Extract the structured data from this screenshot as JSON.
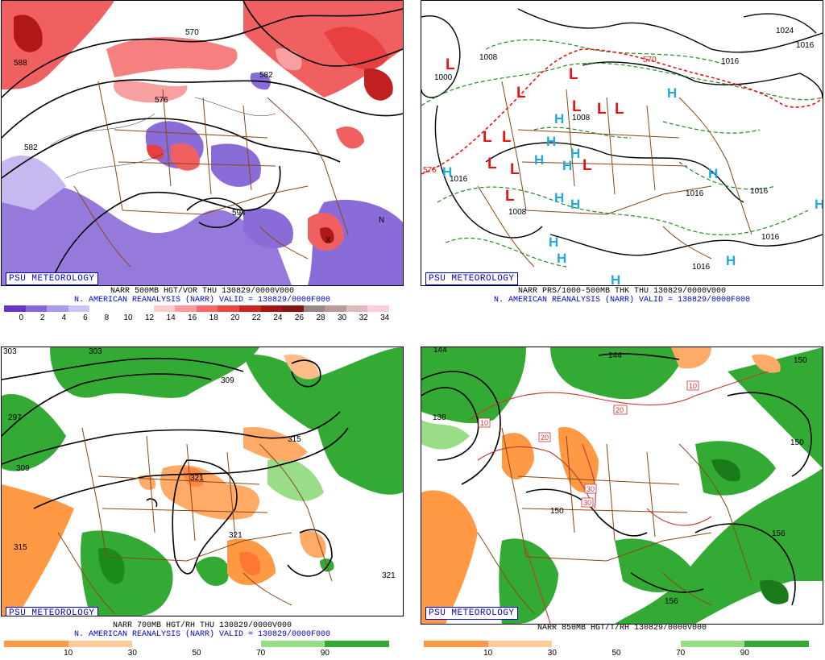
{
  "panels": [
    {
      "id": "p1",
      "watermark": "PSU METEOROLOGY",
      "caption_line1": "NARR 500MB HGT/VOR THU 130829/0000V000",
      "caption_line2": "N. AMERICAN REANALYSIS (NARR) VALID = 130829/0000F000",
      "map_labels": [
        "588",
        "582",
        "594",
        "570",
        "582",
        "576",
        "N",
        "X"
      ],
      "colorbar": {
        "colors": [
          "#6633cc",
          "#8866dd",
          "#aa99ee",
          "#ccc4f4",
          "#ffffff",
          "#ffffff",
          "#ffffff",
          "#ffcccc",
          "#ff9999",
          "#ff6666",
          "#ee4444",
          "#cc2222",
          "#aa1111",
          "#881111",
          "#998888",
          "#bb9999",
          "#ddbbbb",
          "#ffccdd"
        ],
        "ticks": [
          "0",
          "2",
          "4",
          "6",
          "8",
          "10",
          "12",
          "14",
          "16",
          "18",
          "20",
          "22",
          "24",
          "26",
          "28",
          "30",
          "32",
          "34"
        ]
      }
    },
    {
      "id": "p2",
      "watermark": "PSU METEOROLOGY",
      "caption_line1": "NARR PRS/1000-500MB THK THU 130829/0000V000",
      "caption_line2": "N. AMERICAN REANALYSIS (NARR) VALID = 130829/0000F000",
      "map_labels": [
        "1008",
        "1000",
        "1008",
        "1008",
        "1016",
        "1016",
        "1016",
        "1016",
        "1016",
        "1016",
        "1024",
        "1016",
        "570",
        "576",
        "L",
        "H"
      ]
    },
    {
      "id": "p3",
      "watermark": "PSU METEOROLOGY",
      "caption_line1": "NARR 700MB HGT/RH THU 130829/0000V000",
      "caption_line2": "N. AMERICAN REANALYSIS (NARR) VALID = 130829/0000F000",
      "map_labels": [
        "303",
        "303",
        "309",
        "297",
        "309",
        "315",
        "321",
        "321",
        "315",
        "321"
      ],
      "colorbar": {
        "colors": [
          "#ff9944",
          "#ffcc99",
          "#ffffff",
          "#ffffff",
          "#99dd88",
          "#33aa33"
        ],
        "ticks": [
          "10",
          "30",
          "50",
          "70",
          "90"
        ]
      }
    },
    {
      "id": "p4",
      "watermark": "PSU METEOROLOGY",
      "caption_line1": "NARR 850MB HGT/T/RH 130829/0000V000",
      "map_labels": [
        "144",
        "144",
        "150",
        "138",
        "10",
        "20",
        "20",
        "30",
        "30",
        "10",
        "150",
        "150",
        "156",
        "156"
      ],
      "colorbar": {
        "colors": [
          "#ff9944",
          "#ffcc99",
          "#ffffff",
          "#ffffff",
          "#99dd88",
          "#33aa33"
        ],
        "ticks": [
          "10",
          "30",
          "50",
          "70",
          "90"
        ]
      }
    }
  ]
}
